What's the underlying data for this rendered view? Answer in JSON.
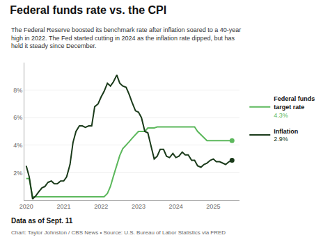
{
  "chart_data": {
    "type": "line",
    "title": "Federal funds rate vs. the CPI",
    "subtitle": "The Federal Reserve boosted its benchmark rate after inflation soared to a 40-year\nhigh in 2022. The Fed started cutting in 2024 as the inflation rate dipped, but has\nheld it steady since December.",
    "footnotes": [
      "Data as of Sept. 11",
      "Chart: Taylor Johnston / CBS News • Source: U.S. Bureau of Labor Statistics via FRED"
    ],
    "x": [
      2020.0,
      2020.08,
      2020.17,
      2020.25,
      2020.33,
      2020.42,
      2020.5,
      2020.58,
      2020.67,
      2020.75,
      2020.83,
      2020.92,
      2021.0,
      2021.08,
      2021.17,
      2021.25,
      2021.33,
      2021.42,
      2021.5,
      2021.58,
      2021.67,
      2021.75,
      2021.83,
      2021.92,
      2022.0,
      2022.08,
      2022.17,
      2022.25,
      2022.33,
      2022.42,
      2022.5,
      2022.58,
      2022.67,
      2022.75,
      2022.83,
      2022.92,
      2023.0,
      2023.08,
      2023.17,
      2023.25,
      2023.33,
      2023.42,
      2023.5,
      2023.58,
      2023.67,
      2023.75,
      2023.83,
      2023.92,
      2024.0,
      2024.08,
      2024.17,
      2024.25,
      2024.33,
      2024.42,
      2024.5,
      2024.58,
      2024.67,
      2024.75,
      2024.83,
      2024.92,
      2025.0,
      2025.08,
      2025.17,
      2025.25,
      2025.33,
      2025.42,
      2025.5
    ],
    "series": [
      {
        "name": "Federal funds\ntarget rate",
        "color": "#5cb85c",
        "annotation": "4.3%",
        "values": [
          1.58,
          1.58,
          0.25,
          0.25,
          0.25,
          0.25,
          0.25,
          0.25,
          0.25,
          0.25,
          0.25,
          0.25,
          0.25,
          0.25,
          0.25,
          0.25,
          0.25,
          0.25,
          0.25,
          0.25,
          0.25,
          0.25,
          0.25,
          0.25,
          0.25,
          0.25,
          0.5,
          1.0,
          1.75,
          2.5,
          3.25,
          3.75,
          4.0,
          4.25,
          4.5,
          4.75,
          5.0,
          5.0,
          5.0,
          5.25,
          5.25,
          5.25,
          5.33,
          5.33,
          5.33,
          5.33,
          5.33,
          5.33,
          5.33,
          5.33,
          5.33,
          5.33,
          5.33,
          5.33,
          5.33,
          5.0,
          4.75,
          4.5,
          4.33,
          4.33,
          4.33,
          4.33,
          4.33,
          4.33,
          4.33,
          4.33,
          4.33
        ]
      },
      {
        "name": "Inflation",
        "color": "#1a3a1a",
        "annotation": "2.9%",
        "values": [
          2.5,
          1.7,
          0.1,
          0.3,
          0.6,
          0.9,
          1.0,
          1.3,
          1.4,
          1.2,
          1.2,
          1.4,
          1.4,
          1.7,
          2.6,
          4.2,
          5.0,
          5.4,
          5.4,
          5.3,
          5.4,
          5.4,
          6.8,
          7.0,
          7.5,
          7.9,
          8.5,
          8.3,
          8.6,
          9.1,
          8.5,
          8.3,
          8.2,
          7.7,
          7.1,
          6.5,
          6.4,
          6.0,
          5.0,
          4.9,
          4.0,
          3.0,
          3.2,
          3.7,
          3.7,
          3.2,
          3.1,
          3.4,
          3.1,
          3.2,
          3.5,
          3.3,
          3.3,
          2.9,
          2.9,
          2.5,
          2.4,
          2.6,
          2.7,
          2.9,
          3.0,
          2.8,
          2.8,
          2.7,
          2.6,
          2.8,
          2.9
        ]
      }
    ],
    "xlim": [
      2019.95,
      2025.7
    ],
    "xticks": [
      2020,
      2021,
      2022,
      2023,
      2024,
      2025
    ],
    "ylim": [
      0,
      10
    ],
    "yticks": [
      {
        "value": 2,
        "label": "2%"
      },
      {
        "value": 4,
        "label": "4%"
      },
      {
        "value": 6,
        "label": "6%"
      },
      {
        "value": 8,
        "label": "8%"
      }
    ],
    "grid": true,
    "legend": "right"
  }
}
